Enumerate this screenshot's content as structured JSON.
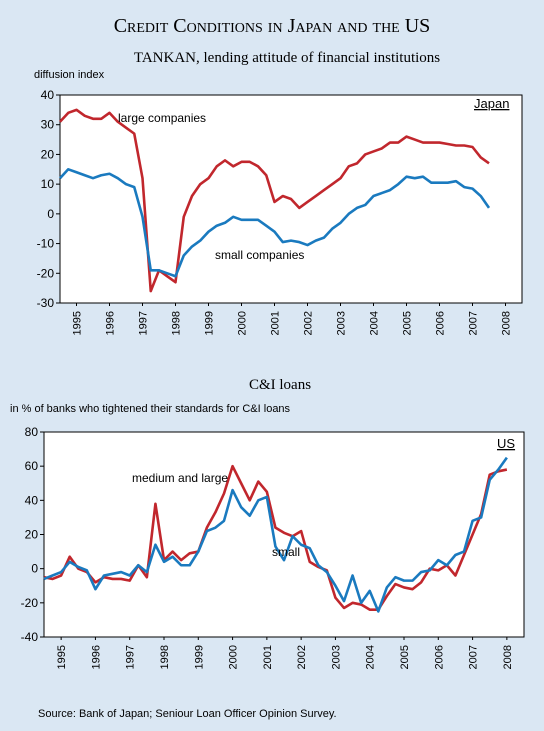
{
  "title": "Credit Conditions in Japan and the US",
  "source": "Source: Bank of Japan; Seniour Loan Officer Opinion Survey.",
  "chart_data": [
    {
      "type": "line",
      "title": "TANKAN, lending attitude of financial institutions",
      "y_label": "diffusion index",
      "annotation": "Japan",
      "xlim": [
        1995,
        2009
      ],
      "xticks": [
        {
          "value": 1995.5,
          "label": "1995"
        },
        {
          "value": 1996.5,
          "label": "1996"
        },
        {
          "value": 1997.5,
          "label": "1997"
        },
        {
          "value": 1998.5,
          "label": "1998"
        },
        {
          "value": 1999.5,
          "label": "1999"
        },
        {
          "value": 2000.5,
          "label": "2000"
        },
        {
          "value": 2001.5,
          "label": "2001"
        },
        {
          "value": 2002.5,
          "label": "2002"
        },
        {
          "value": 2003.5,
          "label": "2003"
        },
        {
          "value": 2004.5,
          "label": "2004"
        },
        {
          "value": 2005.5,
          "label": "2005"
        },
        {
          "value": 2006.5,
          "label": "2006"
        },
        {
          "value": 2007.5,
          "label": "2007"
        },
        {
          "value": 2008.5,
          "label": "2008"
        }
      ],
      "ylim": [
        -30,
        40
      ],
      "yticks": [
        -30,
        -20,
        -10,
        0,
        10,
        20,
        30,
        40
      ],
      "grid": false,
      "x": [
        1995,
        1995.25,
        1995.5,
        1995.75,
        1996,
        1996.25,
        1996.5,
        1996.75,
        1997,
        1997.25,
        1997.5,
        1997.75,
        1998,
        1998.25,
        1998.5,
        1998.75,
        1999,
        1999.25,
        1999.5,
        1999.75,
        2000,
        2000.25,
        2000.5,
        2000.75,
        2001,
        2001.25,
        2001.5,
        2001.75,
        2002,
        2002.25,
        2002.5,
        2002.75,
        2003,
        2003.25,
        2003.5,
        2003.75,
        2004,
        2004.25,
        2004.5,
        2004.75,
        2005,
        2005.25,
        2005.5,
        2005.75,
        2006,
        2006.25,
        2006.5,
        2006.75,
        2007,
        2007.25,
        2007.5,
        2007.75,
        2008
      ],
      "series": [
        {
          "name": "large companies",
          "color": "#c1272d",
          "values": [
            31,
            34,
            35,
            33,
            32,
            32,
            34,
            31,
            29,
            27,
            12,
            -26,
            -19,
            -21,
            -23,
            -1,
            6,
            10,
            12,
            16,
            18,
            16,
            17.5,
            17.5,
            16,
            13,
            4,
            6,
            5,
            2,
            4,
            6,
            8,
            10,
            12,
            16,
            17,
            20,
            21,
            22,
            24,
            24,
            26,
            25,
            24,
            24,
            24,
            23.5,
            23,
            23,
            22.5,
            19,
            17
          ]
        },
        {
          "name": "small companies",
          "color": "#1a7abf",
          "values": [
            12,
            15,
            14,
            13,
            12,
            13,
            13.5,
            12,
            10,
            9,
            -1,
            -19,
            -19,
            -20,
            -21,
            -14,
            -11,
            -9,
            -6,
            -4,
            -3,
            -1,
            -2,
            -2,
            -2,
            -4,
            -6,
            -9.5,
            -9,
            -9.5,
            -10.5,
            -9,
            -8,
            -5,
            -3,
            0,
            2,
            3,
            6,
            7,
            8,
            10,
            12.5,
            12,
            12.5,
            10.5,
            10.5,
            10.5,
            11,
            9,
            8.5,
            6,
            2
          ]
        }
      ]
    },
    {
      "type": "line",
      "title": "C&I loans",
      "y_label": "in % of banks who tightened their standards for C&I loans",
      "annotation": "US",
      "xlim": [
        1995,
        2009
      ],
      "xticks": [
        {
          "value": 1995.5,
          "label": "1995"
        },
        {
          "value": 1996.5,
          "label": "1996"
        },
        {
          "value": 1997.5,
          "label": "1997"
        },
        {
          "value": 1998.5,
          "label": "1998"
        },
        {
          "value": 1999.5,
          "label": "1999"
        },
        {
          "value": 2000.5,
          "label": "2000"
        },
        {
          "value": 2001.5,
          "label": "2001"
        },
        {
          "value": 2002.5,
          "label": "2002"
        },
        {
          "value": 2003.5,
          "label": "2003"
        },
        {
          "value": 2004.5,
          "label": "2004"
        },
        {
          "value": 2005.5,
          "label": "2005"
        },
        {
          "value": 2006.5,
          "label": "2006"
        },
        {
          "value": 2007.5,
          "label": "2007"
        },
        {
          "value": 2008.5,
          "label": "2008"
        }
      ],
      "ylim": [
        -40,
        80
      ],
      "yticks": [
        -40,
        -20,
        0,
        20,
        40,
        60,
        80
      ],
      "grid": false,
      "x": [
        1995,
        1995.25,
        1995.5,
        1995.75,
        1996,
        1996.25,
        1996.5,
        1996.75,
        1997,
        1997.25,
        1997.5,
        1997.75,
        1998,
        1998.25,
        1998.5,
        1998.75,
        1999,
        1999.25,
        1999.5,
        1999.75,
        2000,
        2000.25,
        2000.5,
        2000.75,
        2001,
        2001.25,
        2001.5,
        2001.75,
        2002,
        2002.25,
        2002.5,
        2002.75,
        2003,
        2003.25,
        2003.5,
        2003.75,
        2004,
        2004.25,
        2004.5,
        2004.75,
        2005,
        2005.25,
        2005.5,
        2005.75,
        2006,
        2006.25,
        2006.5,
        2006.75,
        2007,
        2007.25,
        2007.5,
        2007.75,
        2008,
        2008.25,
        2008.5
      ],
      "series": [
        {
          "name": "medium and large",
          "color": "#c1272d",
          "values": [
            -5,
            -6,
            -4,
            7,
            0,
            -2,
            -8,
            -5,
            -6,
            -6,
            -7,
            2,
            -5,
            38,
            5,
            10,
            5,
            9,
            10,
            24,
            33,
            44,
            60,
            50,
            40,
            51,
            45,
            24,
            21,
            19,
            22,
            4,
            1,
            -1,
            -17,
            -23,
            -20,
            -21,
            -24,
            -24,
            -16,
            -9,
            -11,
            -12,
            -8,
            0,
            -1,
            2,
            -4,
            8,
            20,
            32,
            55,
            57,
            58
          ]
        },
        {
          "name": "small",
          "color": "#1a7abf",
          "values": [
            -6,
            -4,
            -2,
            4,
            1,
            -1,
            -12,
            -4,
            -3,
            -2,
            -4,
            2,
            -2,
            14,
            4,
            7,
            2,
            2,
            10,
            22,
            24,
            28,
            46,
            36,
            31,
            40,
            42,
            13,
            5,
            19,
            14,
            12,
            2,
            -2,
            -10,
            -19,
            -4,
            -20,
            -13,
            -25,
            -11,
            -5,
            -7,
            -7,
            -2,
            -1,
            5,
            2,
            8,
            10,
            28,
            30,
            52,
            58,
            65
          ]
        }
      ]
    }
  ]
}
